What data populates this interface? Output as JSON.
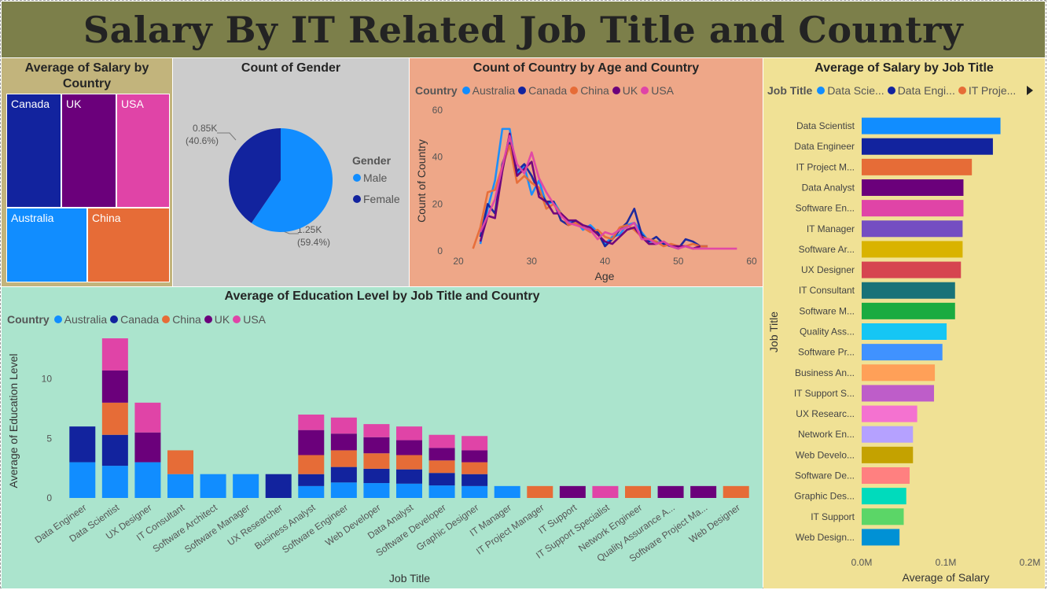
{
  "title": "Salary By IT Related Job Title and Country",
  "treemap": {
    "title": "Average of Salary by Country",
    "items": [
      {
        "label": "Canada",
        "color": "#12239e"
      },
      {
        "label": "UK",
        "color": "#6b007b"
      },
      {
        "label": "USA",
        "color": "#e044a7"
      },
      {
        "label": "Australia",
        "color": "#118dff"
      },
      {
        "label": "China",
        "color": "#e66c37"
      }
    ]
  },
  "gender": {
    "title": "Count of Gender",
    "legend_title": "Gender",
    "legend": [
      {
        "label": "Male",
        "color": "#118dff"
      },
      {
        "label": "Female",
        "color": "#12239e"
      }
    ],
    "label_female": "0.85K",
    "label_female_pct": "(40.6%)",
    "label_male": "1.25K",
    "label_male_pct": "(59.4%)"
  },
  "countries_legend": {
    "title": "Country",
    "items": [
      {
        "label": "Australia",
        "color": "#118dff"
      },
      {
        "label": "Canada",
        "color": "#12239e"
      },
      {
        "label": "China",
        "color": "#e66c37"
      },
      {
        "label": "UK",
        "color": "#6b007b"
      },
      {
        "label": "USA",
        "color": "#e044a7"
      }
    ]
  },
  "jobtitle_legend": {
    "title": "Job Title",
    "items": [
      {
        "label": "Data Scie...",
        "color": "#118dff"
      },
      {
        "label": "Data Engi...",
        "color": "#12239e"
      },
      {
        "label": "IT Proje...",
        "color": "#e66c37"
      }
    ]
  },
  "chart_data": [
    {
      "type": "treemap",
      "title": "Average of Salary by Country",
      "categories": [
        "Canada",
        "UK",
        "USA",
        "Australia",
        "China"
      ]
    },
    {
      "type": "pie",
      "title": "Count of Gender",
      "labels": [
        "Male",
        "Female"
      ],
      "values": [
        1250,
        850
      ],
      "percent": [
        59.4,
        40.6
      ],
      "colors": [
        "#118dff",
        "#12239e"
      ]
    },
    {
      "type": "line",
      "title": "Count of Country by Age and Country",
      "xlabel": "Age",
      "ylabel": "Count of Country",
      "xlim": [
        20,
        60
      ],
      "ylim": [
        0,
        60
      ],
      "xticks": [
        "20",
        "30",
        "40",
        "50",
        "60"
      ],
      "yticks": [
        "0",
        "20",
        "40",
        "60"
      ],
      "series": [
        {
          "name": "Australia",
          "color": "#118dff",
          "x": [
            23,
            24,
            25,
            26,
            27,
            28,
            29,
            30,
            31,
            32,
            33,
            34,
            35,
            36,
            37,
            38,
            39,
            40,
            41,
            42,
            43,
            44,
            45,
            46,
            47,
            48,
            49,
            50
          ],
          "y": [
            3,
            18,
            30,
            52,
            52,
            33,
            36,
            24,
            30,
            20,
            21,
            16,
            12,
            13,
            9,
            11,
            8,
            3,
            6,
            7,
            11,
            12,
            8,
            4,
            4,
            3,
            2,
            2
          ]
        },
        {
          "name": "Canada",
          "color": "#12239e",
          "x": [
            23,
            24,
            25,
            26,
            27,
            28,
            29,
            30,
            31,
            32,
            33,
            34,
            35,
            36,
            37,
            38,
            39,
            40,
            41,
            42,
            43,
            44,
            45,
            46,
            47,
            48,
            49,
            50,
            51,
            52,
            53,
            54
          ],
          "y": [
            6,
            20,
            16,
            37,
            46,
            34,
            37,
            32,
            25,
            21,
            21,
            13,
            11,
            13,
            10,
            9,
            8,
            2,
            5,
            9,
            12,
            18,
            7,
            4,
            6,
            3,
            2,
            1,
            5,
            4,
            2,
            2
          ]
        },
        {
          "name": "China",
          "color": "#e66c37",
          "x": [
            22,
            23,
            24,
            25,
            26,
            27,
            28,
            29,
            30,
            31,
            32,
            33,
            34,
            35,
            36,
            37,
            38,
            39,
            40,
            41,
            42,
            43,
            44,
            45,
            46,
            47,
            48,
            49,
            50,
            51,
            52,
            53,
            54
          ],
          "y": [
            1,
            10,
            25,
            26,
            36,
            45,
            29,
            32,
            29,
            27,
            18,
            20,
            16,
            11,
            12,
            10,
            8,
            9,
            6,
            5,
            10,
            11,
            9,
            6,
            5,
            4,
            2,
            3,
            2,
            2,
            3,
            2,
            2
          ]
        },
        {
          "name": "UK",
          "color": "#6b007b",
          "x": [
            23,
            24,
            25,
            26,
            27,
            28,
            29,
            30,
            31,
            32,
            33,
            34,
            35,
            36,
            37,
            38,
            39,
            40,
            41,
            42,
            43,
            44,
            45,
            46,
            47,
            48,
            49,
            50,
            51,
            52,
            53
          ],
          "y": [
            4,
            15,
            14,
            34,
            50,
            32,
            35,
            38,
            23,
            21,
            16,
            16,
            13,
            13,
            11,
            10,
            7,
            4,
            3,
            6,
            9,
            10,
            6,
            3,
            3,
            4,
            2,
            2,
            2,
            1,
            2
          ]
        },
        {
          "name": "USA",
          "color": "#e044a7",
          "x": [
            23,
            24,
            25,
            26,
            27,
            28,
            29,
            30,
            31,
            32,
            33,
            34,
            35,
            36,
            37,
            38,
            39,
            40,
            41,
            42,
            43,
            44,
            45,
            46,
            47,
            48,
            49,
            50,
            51,
            52,
            53,
            54,
            55,
            56,
            57,
            58
          ],
          "y": [
            8,
            15,
            22,
            36,
            49,
            37,
            33,
            42,
            31,
            25,
            20,
            15,
            12,
            11,
            10,
            9,
            5,
            8,
            7,
            9,
            10,
            12,
            5,
            5,
            3,
            4,
            2,
            1,
            2,
            1,
            1,
            1,
            1,
            1,
            1,
            1
          ]
        }
      ]
    },
    {
      "type": "bar",
      "title": "Average of Education Level by Job Title and Country",
      "stacked": true,
      "xlabel": "Job Title",
      "ylabel": "Average of Education Level",
      "ylim": [
        0,
        14
      ],
      "yticks": [
        "0",
        "5",
        "10"
      ],
      "categories": [
        "Data Engineer",
        "Data Scientist",
        "UX Designer",
        "IT Consultant",
        "Software Architect",
        "Software Manager",
        "UX Researcher",
        "Business Analyst",
        "Software Engineer",
        "Web Developer",
        "Data Analyst",
        "Software Developer",
        "Graphic Designer",
        "IT Manager",
        "IT Project Manager",
        "IT Support",
        "IT Support Specialist",
        "Network Engineer",
        "Quality Assurance A...",
        "Software Project Ma...",
        "Web Designer"
      ],
      "series": [
        {
          "name": "Australia",
          "color": "#118dff",
          "values": [
            3,
            2.7,
            3,
            2,
            2,
            2,
            0,
            1,
            1.3,
            1.25,
            1.2,
            1.05,
            1,
            1,
            0,
            0,
            0,
            0,
            0,
            0,
            0
          ]
        },
        {
          "name": "Canada",
          "color": "#12239e",
          "values": [
            3,
            2.6,
            0,
            0,
            0,
            0,
            2,
            1,
            1.3,
            1.2,
            1.2,
            1.05,
            1,
            0,
            0,
            0,
            0,
            0,
            0,
            0,
            0
          ]
        },
        {
          "name": "China",
          "color": "#e66c37",
          "values": [
            0,
            2.7,
            0,
            2,
            0,
            0,
            0,
            1.6,
            1.4,
            1.3,
            1.2,
            1.05,
            1,
            0,
            1,
            0,
            0,
            1,
            0,
            0,
            1
          ]
        },
        {
          "name": "UK",
          "color": "#6b007b",
          "values": [
            0,
            2.7,
            2.5,
            0,
            0,
            0,
            0,
            2.1,
            1.4,
            1.35,
            1.25,
            1.05,
            1,
            0,
            0,
            1,
            0,
            0,
            1,
            1,
            0
          ]
        },
        {
          "name": "USA",
          "color": "#e044a7",
          "values": [
            0,
            2.7,
            2.5,
            0,
            0,
            0,
            0,
            1.3,
            1.35,
            1.1,
            1.15,
            1.1,
            1.2,
            0,
            0,
            0,
            1,
            0,
            0,
            0,
            0
          ]
        }
      ]
    },
    {
      "type": "bar",
      "orientation": "horizontal",
      "title": "Average of Salary by Job Title",
      "xlabel": "Average of Salary",
      "ylabel": "Job Title",
      "xlim": [
        0,
        200000
      ],
      "xticks": [
        "0.0M",
        "0.1M",
        "0.2M"
      ],
      "categories": [
        "Data Scientist",
        "Data Engineer",
        "IT Project M...",
        "Data Analyst",
        "Software En...",
        "IT Manager",
        "Software Ar...",
        "UX Designer",
        "IT Consultant",
        "Software M...",
        "Quality Ass...",
        "Software Pr...",
        "Business An...",
        "IT Support S...",
        "UX Researc...",
        "Network En...",
        "Web Develo...",
        "Software De...",
        "Graphic Des...",
        "IT Support",
        "Web Design..."
      ],
      "values": [
        165000,
        156000,
        131000,
        121000,
        121000,
        120000,
        120000,
        118000,
        111000,
        111000,
        101000,
        96000,
        87000,
        86000,
        66000,
        61000,
        61000,
        57000,
        53000,
        50000,
        45000
      ],
      "colors": [
        "#118dff",
        "#12239e",
        "#e66c37",
        "#6b007b",
        "#e044a7",
        "#744ec2",
        "#d9b300",
        "#d64550",
        "#197278",
        "#1aab40",
        "#15c6f4",
        "#4092ff",
        "#ffa058",
        "#be5dc9",
        "#f472d0",
        "#b5a1ff",
        "#c4a200",
        "#ff8080",
        "#00dbbc",
        "#5bd667",
        "#0091d5"
      ]
    }
  ]
}
